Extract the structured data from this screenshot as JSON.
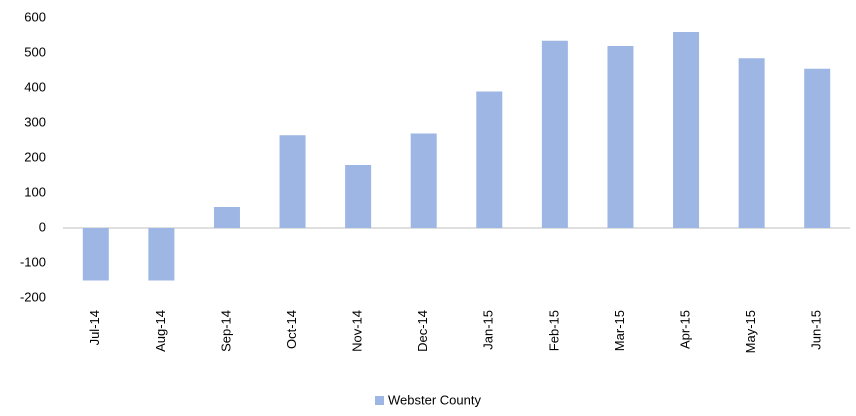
{
  "chart_data": {
    "type": "bar",
    "categories": [
      "Jul-14",
      "Aug-14",
      "Sep-14",
      "Oct-14",
      "Nov-14",
      "Dec-14",
      "Jan-15",
      "Feb-15",
      "Mar-15",
      "Apr-15",
      "May-15",
      "Jun-15"
    ],
    "series": [
      {
        "name": "Webster County",
        "color": "#9db6e4",
        "values": [
          -150,
          -150,
          60,
          265,
          180,
          270,
          390,
          535,
          520,
          560,
          485,
          455
        ]
      }
    ],
    "ylim": [
      -200,
      600
    ],
    "yticks": [
      -200,
      -100,
      0,
      100,
      200,
      300,
      400,
      500,
      600
    ],
    "grid": false,
    "legend": "bottom"
  }
}
